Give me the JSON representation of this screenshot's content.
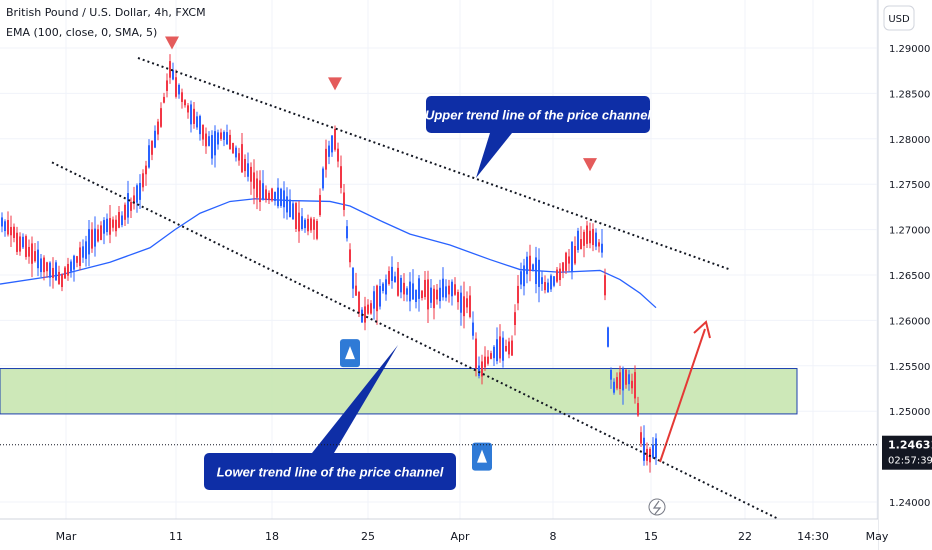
{
  "header": {
    "title": "British Pound / U.S. Dollar, 4h, FXCM",
    "indicator": "EMA (100, close, 0, SMA, 5)"
  },
  "currency_label": "USD",
  "colors": {
    "up": "#2962ff",
    "down": "#f23645",
    "ema": "#2962ff",
    "zone_fill": "#c8e6b0",
    "zone_border": "#1c3fae",
    "arrow": "#e53935",
    "callout": "#0e2ea6",
    "marker_down": "#e45b5b",
    "marker_up": "#2f7ad6"
  },
  "price_badge": {
    "price": "1.24631",
    "countdown": "02:57:39"
  },
  "annotations": {
    "upper": "Upper trend line of the price channel",
    "lower": "Lower trend line of the price channel"
  },
  "chart_data": {
    "type": "candlestick",
    "y_ticks": [
      "1.29000",
      "1.28500",
      "1.28000",
      "1.27500",
      "1.27000",
      "1.26500",
      "1.26000",
      "1.25500",
      "1.25000",
      "1.24000"
    ],
    "x_ticks": [
      "Mar",
      "11",
      "18",
      "25",
      "Apr",
      "8",
      "15",
      "22",
      "14:30",
      "May"
    ],
    "ylim": [
      1.2365,
      1.2945
    ],
    "zone": [
      1.2497,
      1.2547
    ],
    "upper_trend_line": [
      [
        138,
        1.2889
      ],
      [
        730,
        1.2656
      ]
    ],
    "lower_trend_line": [
      [
        52,
        1.2774
      ],
      [
        790,
        1.2375
      ]
    ],
    "series": [
      {
        "name": "GBPUSD 4h",
        "segments": [
          [
            0,
            1.271
          ],
          [
            40,
            1.2665
          ],
          [
            62,
            1.2645
          ],
          [
            80,
            1.2672
          ],
          [
            100,
            1.2698
          ],
          [
            120,
            1.271
          ],
          [
            140,
            1.2742
          ],
          [
            152,
            1.279
          ],
          [
            160,
            1.2818
          ],
          [
            170,
            1.2877
          ],
          [
            180,
            1.285
          ],
          [
            195,
            1.282
          ],
          [
            210,
            1.2795
          ],
          [
            225,
            1.2805
          ],
          [
            245,
            1.2772
          ],
          [
            262,
            1.2738
          ],
          [
            280,
            1.2735
          ],
          [
            300,
            1.2712
          ],
          [
            318,
            1.27
          ],
          [
            325,
            1.2775
          ],
          [
            336,
            1.28
          ],
          [
            343,
            1.2738
          ],
          [
            352,
            1.265
          ],
          [
            362,
            1.2605
          ],
          [
            375,
            1.262
          ],
          [
            390,
            1.265
          ],
          [
            410,
            1.263
          ],
          [
            430,
            1.263
          ],
          [
            455,
            1.2632
          ],
          [
            470,
            1.2615
          ],
          [
            478,
            1.2545
          ],
          [
            495,
            1.2566
          ],
          [
            512,
            1.257
          ],
          [
            520,
            1.265
          ],
          [
            532,
            1.266
          ],
          [
            548,
            1.2635
          ],
          [
            562,
            1.2655
          ],
          [
            578,
            1.2682
          ],
          [
            590,
            1.2695
          ],
          [
            602,
            1.268
          ],
          [
            607,
            1.26
          ],
          [
            612,
            1.2525
          ],
          [
            625,
            1.254
          ],
          [
            636,
            1.2525
          ],
          [
            642,
            1.246
          ],
          [
            650,
            1.245
          ],
          [
            655,
            1.2463
          ]
        ]
      },
      {
        "name": "EMA (100)",
        "points": [
          [
            0,
            1.264
          ],
          [
            60,
            1.265
          ],
          [
            110,
            1.2664
          ],
          [
            150,
            1.268
          ],
          [
            175,
            1.27
          ],
          [
            200,
            1.2718
          ],
          [
            230,
            1.2731
          ],
          [
            255,
            1.2734
          ],
          [
            290,
            1.2732
          ],
          [
            330,
            1.2731
          ],
          [
            350,
            1.2726
          ],
          [
            380,
            1.271
          ],
          [
            410,
            1.2695
          ],
          [
            450,
            1.2683
          ],
          [
            490,
            1.2667
          ],
          [
            520,
            1.2656
          ],
          [
            560,
            1.2653
          ],
          [
            600,
            1.2655
          ],
          [
            620,
            1.2645
          ],
          [
            640,
            1.263
          ],
          [
            656,
            1.2614
          ]
        ]
      }
    ],
    "markers_down": [
      [
        172,
        1.2905
      ],
      [
        335,
        1.286
      ],
      [
        590,
        1.2771
      ]
    ],
    "markers_up": [
      [
        350,
        1.2564
      ],
      [
        482,
        1.245
      ]
    ]
  }
}
